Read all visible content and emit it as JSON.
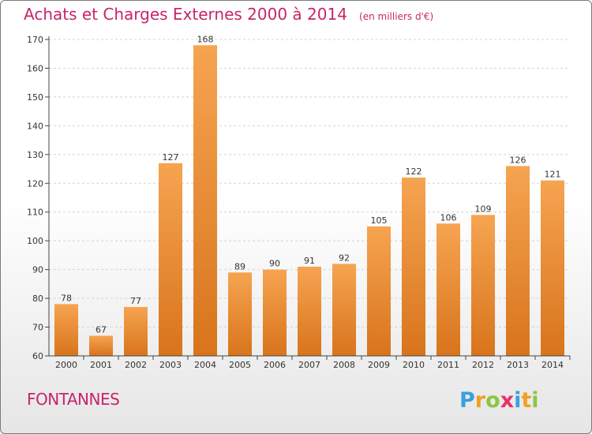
{
  "header": {
    "title": "Achats et Charges Externes 2000 à 2014",
    "subtitle": "(en milliers d'€)"
  },
  "footer": {
    "city": "FONTANNES",
    "brand": "Proxiti"
  },
  "colors": {
    "title": "#c8256a",
    "bar_top": "#f6a451",
    "bar_bottom": "#d8741c"
  },
  "chart_data": {
    "type": "bar",
    "categories": [
      "2000",
      "2001",
      "2002",
      "2003",
      "2004",
      "2005",
      "2006",
      "2007",
      "2008",
      "2009",
      "2010",
      "2011",
      "2012",
      "2013",
      "2014"
    ],
    "values": [
      78,
      67,
      77,
      127,
      168,
      89,
      90,
      91,
      92,
      105,
      122,
      106,
      109,
      126,
      121
    ],
    "ylim": [
      60,
      170
    ],
    "yticks": [
      60,
      70,
      80,
      90,
      100,
      110,
      120,
      130,
      140,
      150,
      160,
      170
    ],
    "grid": true,
    "legend": "none"
  }
}
